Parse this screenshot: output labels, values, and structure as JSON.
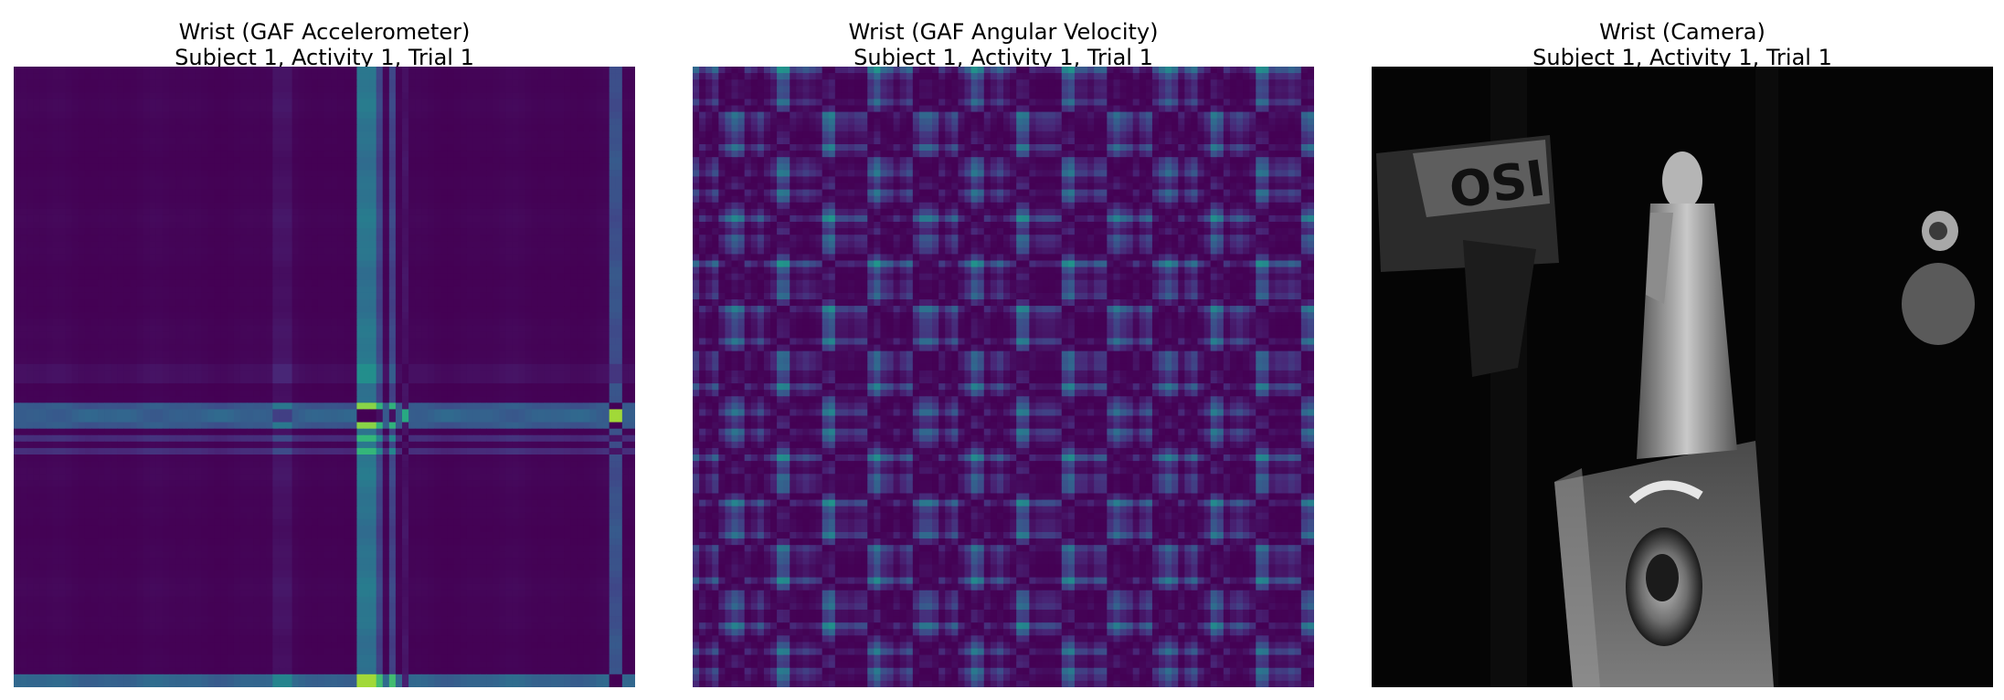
{
  "chart_data": [
    {
      "type": "heatmap",
      "title": "Wrist (GAF Accelerometer)",
      "subtitle": "Subject 1, Activity 1, Trial 1",
      "colormap": "viridis",
      "axis": "off",
      "grid_size": 96,
      "profile_notes": "Gramian angular field; bright (yellow) bands near column 53-56 and row 53-56, dark (purple) band near row 53-54 and column 93-94",
      "colors": {
        "low": "#440154",
        "high": "#fde725"
      }
    },
    {
      "type": "heatmap",
      "title": "Wrist (GAF Angular Velocity)",
      "subtitle": "Subject 1, Activity 1, Trial 1",
      "colormap": "viridis",
      "axis": "off",
      "grid_size": 96,
      "colors": {
        "low": "#440154",
        "high": "#fde725"
      }
    },
    {
      "type": "image",
      "title": "Wrist (Camera)",
      "subtitle": "Subject 1, Activity 1, Trial 1",
      "colormap": "gray",
      "axis": "off",
      "sign_text": "OSI"
    }
  ]
}
